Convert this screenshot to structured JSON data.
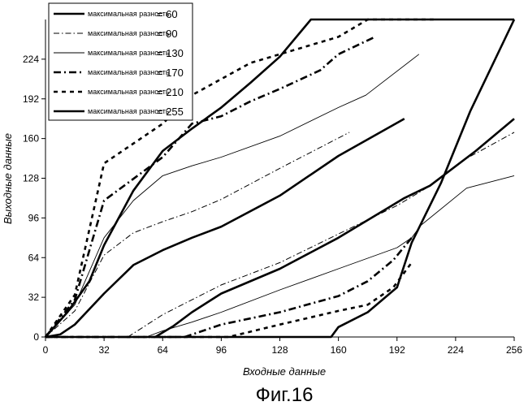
{
  "figure_caption": "Фиг.16",
  "chart_data": {
    "type": "line",
    "xlabel": "Входные данные",
    "ylabel": "Выходные данные",
    "xlim": [
      0,
      256
    ],
    "ylim": [
      0,
      256
    ],
    "xticks": [
      0,
      32,
      64,
      96,
      128,
      160,
      192,
      224,
      256
    ],
    "yticks": [
      0,
      32,
      64,
      96,
      128,
      160,
      192,
      224
    ],
    "grid": false,
    "legend_position": "top-left",
    "legend_label_prefix": "максимальная разность",
    "series": [
      {
        "name": "максимальная разность= 60",
        "value_label": "= 60",
        "style": "thick-solid",
        "upper": {
          "x": [
            0,
            8,
            16,
            32,
            48,
            64,
            80,
            96,
            128,
            160,
            196
          ],
          "y": [
            0,
            2,
            10,
            35,
            58,
            70,
            80,
            89,
            114,
            146,
            176
          ]
        },
        "lower": {
          "x": [
            60,
            70,
            80,
            96,
            128,
            160,
            196,
            210,
            235,
            256
          ],
          "y": [
            0,
            9,
            20,
            35,
            55,
            80,
            112,
            122,
            150,
            176
          ]
        }
      },
      {
        "name": "максимальная разность= 90",
        "value_label": "= 90",
        "style": "dash-dot",
        "upper": {
          "x": [
            0,
            16,
            32,
            48,
            64,
            80,
            96,
            128,
            166
          ],
          "y": [
            0,
            21,
            66,
            84,
            93,
            101,
            111,
            136,
            165
          ]
        },
        "lower": {
          "x": [
            45,
            64,
            80,
            96,
            128,
            160,
            192,
            208,
            230,
            256
          ],
          "y": [
            0,
            18,
            30,
            42,
            60,
            83,
            106,
            120,
            144,
            165
          ]
        }
      },
      {
        "name": "максимальная разность= 130",
        "value_label": "= 130",
        "style": "thin-solid",
        "upper": {
          "x": [
            0,
            16,
            32,
            48,
            64,
            80,
            96,
            128,
            160,
            175,
            204
          ],
          "y": [
            0,
            26,
            80,
            110,
            130,
            138,
            145,
            162,
            185,
            195,
            228
          ]
        },
        "lower": {
          "x": [
            55,
            64,
            80,
            96,
            128,
            160,
            192,
            200,
            205,
            230,
            256
          ],
          "y": [
            0,
            5,
            12,
            20,
            38,
            55,
            72,
            80,
            90,
            120,
            130
          ]
        }
      },
      {
        "name": "максимальная разность= 170",
        "value_label": "= 170",
        "style": "dash-dot-thick",
        "upper": {
          "x": [
            0,
            16,
            32,
            64,
            80,
            96,
            112,
            128,
            150,
            160,
            180
          ],
          "y": [
            0,
            30,
            110,
            145,
            172,
            178,
            190,
            200,
            215,
            228,
            242
          ]
        },
        "lower": {
          "x": [
            0,
            20,
            40,
            60,
            76,
            96,
            128,
            160,
            176,
            190,
            200
          ],
          "y": [
            0,
            0,
            0,
            0,
            0,
            10,
            20,
            33,
            45,
            62,
            80
          ]
        }
      },
      {
        "name": "максимальная разность= 210",
        "value_label": "= 210",
        "style": "thick-dashed",
        "upper": {
          "x": [
            0,
            16,
            32,
            64,
            80,
            112,
            128,
            160,
            176,
            212
          ],
          "y": [
            0,
            34,
            140,
            172,
            195,
            221,
            228,
            242,
            256,
            256
          ]
        },
        "lower": {
          "x": [
            0,
            40,
            80,
            100,
            128,
            160,
            176,
            190,
            200
          ],
          "y": [
            0,
            0,
            0,
            0,
            10,
            21,
            26,
            40,
            60
          ]
        }
      },
      {
        "name": "максимальная разность= 255",
        "value_label": "= 255",
        "style": "thick-solid",
        "upper": {
          "x": [
            0,
            12,
            24,
            32,
            48,
            64,
            80,
            96,
            112,
            128,
            145,
            256
          ],
          "y": [
            0,
            20,
            45,
            74,
            118,
            150,
            168,
            185,
            205,
            226,
            256,
            256
          ]
        },
        "lower": {
          "x": [
            0,
            40,
            80,
            120,
            156,
            160,
            176,
            192,
            200,
            216,
            232,
            256
          ],
          "y": [
            0,
            0,
            0,
            0,
            0,
            8,
            20,
            40,
            76,
            124,
            182,
            256
          ]
        }
      }
    ]
  }
}
